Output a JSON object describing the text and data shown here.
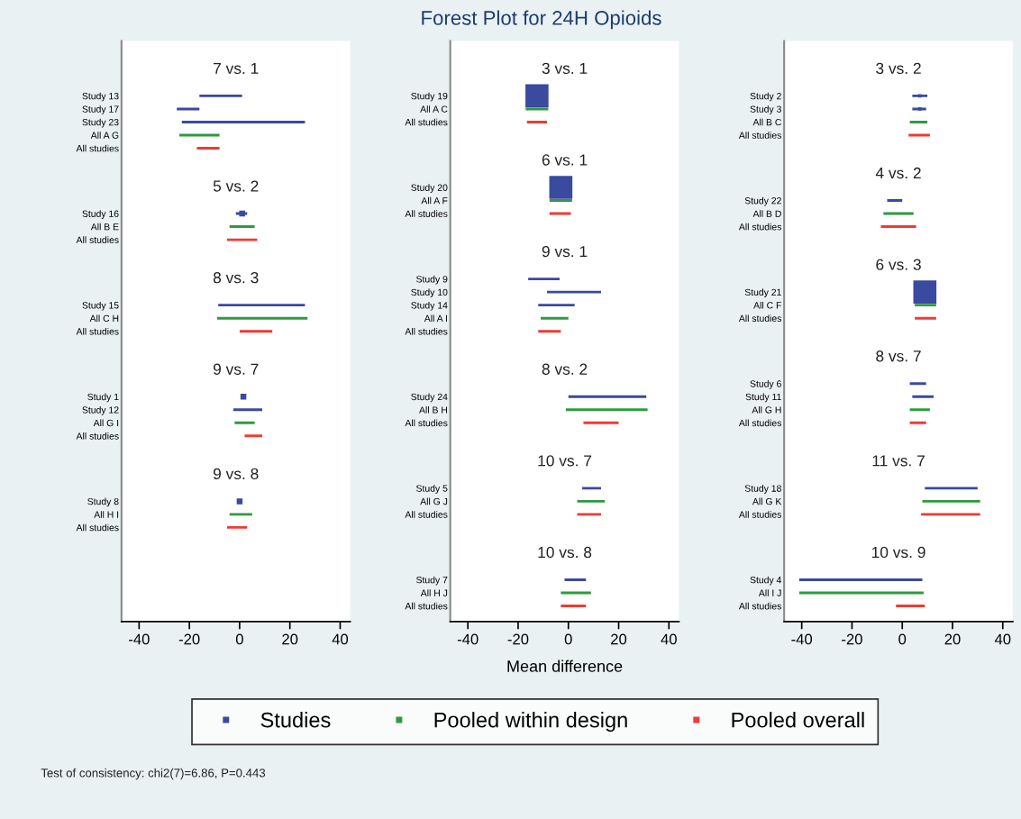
{
  "chart_data": [
    {
      "type": "bar",
      "orientation": "horizontal",
      "categories": [
        null,
        null,
        "Study 13",
        "Study 17",
        "Study 23",
        "All A G",
        "All studies",
        null,
        null,
        null,
        null,
        "Study 16",
        "All B E",
        "All studies",
        null,
        null,
        null,
        null,
        "Study 15",
        "All C H",
        "All studies",
        null,
        null,
        null,
        null,
        "Study 1",
        "Study 12",
        "All G I",
        "All studies",
        null,
        null,
        null,
        null,
        "Study 8",
        "All H I",
        "All studies",
        null,
        null,
        null,
        null,
        null,
        null
      ],
      "series": [
        {
          "color": "#3a4a9f",
          "values": [
            null,
            null,
            17,
            9,
            49,
            null,
            null,
            null,
            null,
            null,
            null,
            4.5,
            null,
            null,
            null,
            null,
            null,
            null,
            34.5,
            null,
            null,
            null,
            null,
            null,
            null,
            null,
            11.5,
            null,
            null,
            null,
            null,
            null,
            null,
            null,
            null,
            null,
            null,
            null,
            null,
            null,
            null,
            null
          ],
          "base": [
            null,
            null,
            -16,
            -25,
            -23,
            null,
            null,
            null,
            null,
            null,
            null,
            -1.5,
            null,
            null,
            null,
            null,
            null,
            null,
            -8.5,
            null,
            null,
            null,
            null,
            null,
            null,
            null,
            -2.5,
            null,
            null,
            null,
            null,
            null,
            null,
            null,
            null,
            null,
            null,
            null,
            null,
            null,
            null,
            null
          ]
        },
        {
          "color": "#2f9a3f",
          "values": [
            null,
            null,
            null,
            null,
            null,
            16,
            null,
            null,
            null,
            null,
            null,
            null,
            10,
            null,
            null,
            null,
            null,
            null,
            null,
            36,
            null,
            null,
            null,
            null,
            null,
            null,
            null,
            8,
            null,
            null,
            null,
            null,
            null,
            null,
            9,
            null,
            null,
            null,
            null,
            null,
            null,
            null
          ],
          "base": [
            null,
            null,
            null,
            null,
            null,
            -24,
            null,
            null,
            null,
            null,
            null,
            null,
            -4,
            null,
            null,
            null,
            null,
            null,
            null,
            -9,
            null,
            null,
            null,
            null,
            null,
            null,
            null,
            -2,
            null,
            null,
            null,
            null,
            null,
            null,
            -4,
            null,
            null,
            null,
            null,
            null,
            null,
            null
          ]
        },
        {
          "color": "#f03a35",
          "values": [
            null,
            null,
            null,
            null,
            null,
            null,
            9,
            null,
            null,
            null,
            null,
            null,
            null,
            12,
            null,
            null,
            null,
            null,
            null,
            null,
            13,
            null,
            null,
            null,
            null,
            null,
            null,
            null,
            7,
            null,
            null,
            null,
            null,
            null,
            null,
            8,
            null,
            null,
            null,
            null,
            null,
            null
          ],
          "base": [
            null,
            null,
            null,
            null,
            null,
            null,
            -17,
            null,
            null,
            null,
            null,
            null,
            null,
            -5,
            null,
            null,
            null,
            null,
            null,
            null,
            0,
            null,
            null,
            null,
            null,
            null,
            null,
            null,
            2,
            null,
            null,
            null,
            null,
            null,
            null,
            -5,
            null,
            null,
            null,
            null,
            null,
            null
          ]
        },
        {
          "type": "scatter",
          "marker": "square",
          "color": "#3a4a9f",
          "values": [
            null,
            null,
            null,
            null,
            null,
            null,
            null,
            null,
            null,
            null,
            null,
            1,
            null,
            null,
            null,
            null,
            null,
            null,
            null,
            null,
            null,
            null,
            null,
            null,
            null,
            1.5,
            null,
            null,
            null,
            null,
            null,
            null,
            null,
            0,
            null,
            null,
            null,
            null,
            null,
            null,
            null,
            null
          ]
        }
      ],
      "xlim": [
        -47,
        44
      ],
      "xticks": [
        -40,
        -20,
        0,
        20,
        40
      ],
      "annotations": [
        "7 vs. 1",
        "5 vs. 2",
        "8 vs. 3",
        "9 vs. 7",
        "9 vs. 8"
      ]
    },
    {
      "type": "bar",
      "orientation": "horizontal",
      "title": "Forest Plot for 24H Opioids",
      "xlabel": "Mean difference",
      "legend": "bottom",
      "categories": [
        null,
        null,
        "Study 19",
        "All A C",
        "All studies",
        null,
        null,
        null,
        null,
        "Study 20",
        "All A F",
        "All studies",
        null,
        null,
        null,
        null,
        "Study 9",
        "Study 10",
        "Study 14",
        "All A I",
        "All studies",
        null,
        null,
        null,
        null,
        "Study 24",
        "All B H",
        "All studies",
        null,
        null,
        null,
        null,
        "Study 5",
        "All G J",
        "All studies",
        null,
        null,
        null,
        null,
        "Study 7",
        "All H J",
        "All studies"
      ],
      "series": [
        {
          "name": "Studies",
          "color": "#3a4a9f",
          "values": [
            null,
            null,
            null,
            null,
            null,
            null,
            null,
            null,
            null,
            null,
            null,
            null,
            null,
            null,
            null,
            null,
            12.5,
            21.5,
            14.5,
            null,
            null,
            null,
            null,
            null,
            null,
            31,
            null,
            null,
            null,
            null,
            null,
            null,
            7.5,
            null,
            null,
            null,
            null,
            null,
            null,
            8.5,
            null,
            null
          ],
          "base": [
            null,
            null,
            null,
            null,
            null,
            null,
            null,
            null,
            null,
            null,
            null,
            null,
            null,
            null,
            null,
            null,
            -16,
            -8.5,
            -12,
            null,
            null,
            null,
            null,
            null,
            null,
            0,
            null,
            null,
            null,
            null,
            null,
            null,
            5.5,
            null,
            null,
            null,
            null,
            null,
            null,
            -1.5,
            null,
            null
          ]
        },
        {
          "name": "Pooled within design",
          "color": "#2f9a3f",
          "values": [
            null,
            null,
            null,
            9,
            null,
            null,
            null,
            null,
            null,
            null,
            9,
            null,
            null,
            null,
            null,
            null,
            null,
            null,
            null,
            11,
            null,
            null,
            null,
            null,
            null,
            null,
            32.5,
            null,
            null,
            null,
            null,
            null,
            null,
            11,
            null,
            null,
            null,
            null,
            null,
            null,
            12,
            null
          ],
          "base": [
            null,
            null,
            null,
            -17,
            null,
            null,
            null,
            null,
            null,
            null,
            -7.5,
            null,
            null,
            null,
            null,
            null,
            null,
            null,
            null,
            -11,
            null,
            null,
            null,
            null,
            null,
            null,
            -1,
            null,
            null,
            null,
            null,
            null,
            null,
            3.5,
            null,
            null,
            null,
            null,
            null,
            null,
            -3,
            null
          ]
        },
        {
          "name": "Pooled overall",
          "color": "#f03a35",
          "values": [
            null,
            null,
            null,
            null,
            8,
            null,
            null,
            null,
            null,
            null,
            null,
            8.5,
            null,
            null,
            null,
            null,
            null,
            null,
            null,
            null,
            9,
            null,
            null,
            null,
            null,
            null,
            null,
            14,
            null,
            null,
            null,
            null,
            null,
            null,
            9.5,
            null,
            null,
            null,
            null,
            null,
            null,
            10
          ],
          "base": [
            null,
            null,
            null,
            null,
            -16.5,
            null,
            null,
            null,
            null,
            null,
            null,
            -7.5,
            null,
            null,
            null,
            null,
            null,
            null,
            null,
            null,
            -12,
            null,
            null,
            null,
            null,
            null,
            null,
            6,
            null,
            null,
            null,
            null,
            null,
            null,
            3.5,
            null,
            null,
            null,
            null,
            null,
            null,
            -3
          ]
        },
        {
          "type": "scatter",
          "marker": "square",
          "color": "#3a4a9f",
          "values": [
            null,
            null,
            -12.5,
            null,
            null,
            null,
            null,
            null,
            null,
            -3,
            null,
            null,
            null,
            null,
            null,
            null,
            null,
            null,
            null,
            null,
            null,
            null,
            null,
            null,
            null,
            null,
            null,
            null,
            null,
            null,
            null,
            null,
            null,
            null,
            null,
            null,
            null,
            null,
            null,
            null,
            null,
            null
          ],
          "sizes": [
            null,
            null,
            1,
            null,
            null,
            null,
            null,
            null,
            null,
            1,
            null,
            null,
            null,
            null,
            null,
            null,
            null,
            null,
            null,
            null,
            null,
            null,
            null,
            null,
            null,
            null,
            null,
            null,
            null,
            null,
            null,
            null,
            null,
            null,
            null,
            null,
            null,
            null,
            null,
            null,
            null,
            null
          ]
        }
      ],
      "xlim": [
        -47,
        44
      ],
      "xticks": [
        -40,
        -20,
        0,
        20,
        40
      ],
      "annotations": [
        "3 vs. 1",
        "6 vs. 1",
        "9 vs. 1",
        "8 vs. 2",
        "10 vs. 7",
        "10 vs. 8",
        "Test of consistency: chi2(7)=6.86, P=0.443"
      ]
    },
    {
      "type": "bar",
      "orientation": "horizontal",
      "categories": [
        null,
        null,
        "Study 2",
        "Study 3",
        "All B C",
        "All studies",
        null,
        null,
        null,
        null,
        "Study 22",
        "All B D",
        "All studies",
        null,
        null,
        null,
        null,
        "Study 21",
        "All C F",
        "All studies",
        null,
        null,
        null,
        null,
        "Study 6",
        "Study 11",
        "All G H",
        "All studies",
        null,
        null,
        null,
        null,
        "Study 18",
        "All G K",
        "All studies",
        null,
        null,
        null,
        null,
        "Study 4",
        "All I J",
        "All studies"
      ],
      "series": [
        {
          "color": "#3a4a9f",
          "values": [
            null,
            null,
            6,
            5.5,
            null,
            null,
            null,
            null,
            null,
            null,
            6,
            null,
            null,
            null,
            null,
            null,
            null,
            null,
            null,
            null,
            null,
            null,
            null,
            null,
            6.5,
            8.5,
            null,
            null,
            null,
            null,
            null,
            null,
            21,
            null,
            null,
            null,
            null,
            null,
            null,
            49,
            null,
            null
          ],
          "base": [
            null,
            null,
            4,
            4,
            null,
            null,
            null,
            null,
            null,
            null,
            -6,
            null,
            null,
            null,
            null,
            null,
            null,
            null,
            null,
            null,
            null,
            null,
            null,
            null,
            3,
            4,
            null,
            null,
            null,
            null,
            null,
            null,
            9,
            null,
            null,
            null,
            null,
            null,
            null,
            -41,
            null,
            null
          ]
        },
        {
          "color": "#2f9a3f",
          "values": [
            null,
            null,
            null,
            null,
            7,
            null,
            null,
            null,
            null,
            null,
            null,
            12,
            null,
            null,
            null,
            null,
            null,
            null,
            8.5,
            null,
            null,
            null,
            null,
            null,
            null,
            null,
            8,
            null,
            null,
            null,
            null,
            null,
            null,
            23,
            null,
            null,
            null,
            null,
            null,
            null,
            49.5,
            null
          ],
          "base": [
            null,
            null,
            null,
            null,
            3,
            null,
            null,
            null,
            null,
            null,
            null,
            -7.5,
            null,
            null,
            null,
            null,
            null,
            null,
            5,
            null,
            null,
            null,
            null,
            null,
            null,
            null,
            3,
            null,
            null,
            null,
            null,
            null,
            null,
            8,
            null,
            null,
            null,
            null,
            null,
            null,
            -41,
            null
          ]
        },
        {
          "color": "#f03a35",
          "values": [
            null,
            null,
            null,
            null,
            null,
            8.5,
            null,
            null,
            null,
            null,
            null,
            null,
            14,
            null,
            null,
            null,
            null,
            null,
            null,
            8.5,
            null,
            null,
            null,
            null,
            null,
            null,
            null,
            6.5,
            null,
            null,
            null,
            null,
            null,
            null,
            23.5,
            null,
            null,
            null,
            null,
            null,
            null,
            11.5
          ],
          "base": [
            null,
            null,
            null,
            null,
            null,
            2.5,
            null,
            null,
            null,
            null,
            null,
            null,
            -8.5,
            null,
            null,
            null,
            null,
            null,
            null,
            5,
            null,
            null,
            null,
            null,
            null,
            null,
            null,
            3,
            null,
            null,
            null,
            null,
            null,
            null,
            7.5,
            null,
            null,
            null,
            null,
            null,
            null,
            -2.5
          ]
        },
        {
          "type": "scatter",
          "marker": "square",
          "color": "#3a4a9f",
          "values": [
            null,
            null,
            7,
            7,
            null,
            null,
            null,
            null,
            null,
            null,
            null,
            null,
            null,
            null,
            null,
            null,
            null,
            9,
            null,
            null,
            null,
            null,
            null,
            null,
            null,
            null,
            null,
            null,
            null,
            null,
            null,
            null,
            null,
            null,
            null,
            null,
            null,
            null,
            null,
            null,
            null,
            null
          ],
          "sizes": [
            null,
            null,
            0.02,
            0.02,
            null,
            null,
            null,
            null,
            null,
            null,
            null,
            null,
            null,
            null,
            null,
            null,
            null,
            1,
            null,
            null,
            null,
            null,
            null,
            null,
            null,
            null,
            null,
            null,
            null,
            null,
            null,
            null,
            null,
            null,
            null,
            null,
            null,
            null,
            null,
            null,
            null,
            null
          ]
        }
      ],
      "xlim": [
        -47,
        44
      ],
      "xticks": [
        -40,
        -20,
        0,
        20,
        40
      ],
      "annotations": [
        "3 vs. 2",
        "4 vs. 2",
        "6 vs. 3",
        "8 vs. 7",
        "11 vs. 7",
        "10 vs. 9"
      ]
    }
  ]
}
